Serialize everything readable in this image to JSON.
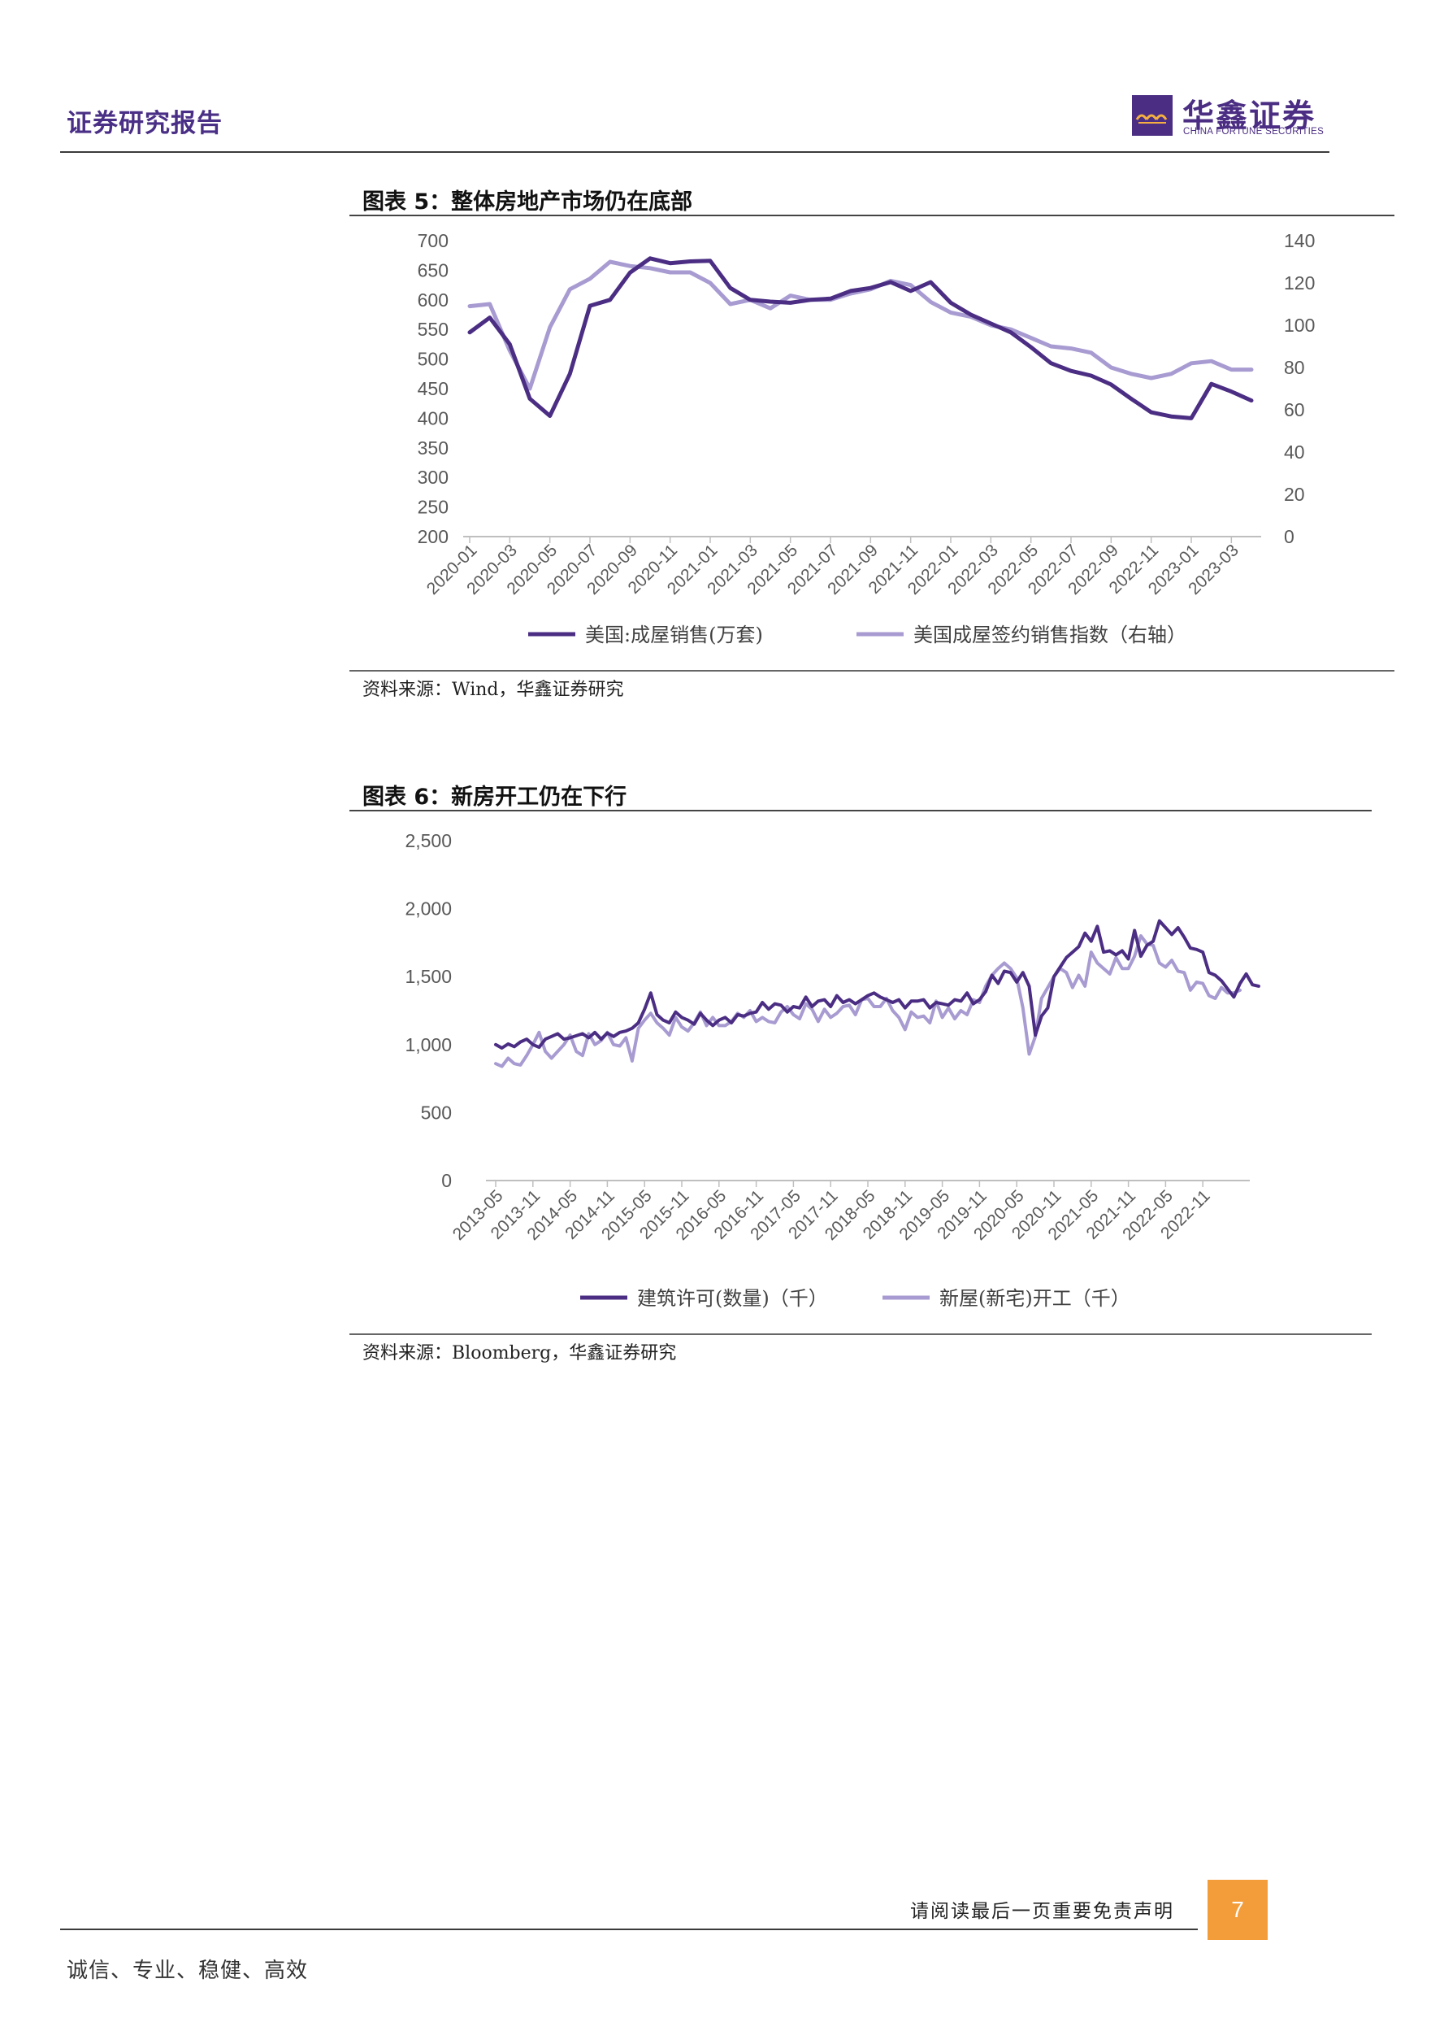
{
  "header": {
    "title": "证券研究报告",
    "logo_cn": "华鑫证券",
    "logo_en": "CHINA FORTUNE SECURITIES",
    "brand_color": "#4b2e83"
  },
  "figure5": {
    "title": "图表 5：整体房地产市场仍在底部",
    "source": "资料来源：Wind，华鑫证券研究"
  },
  "figure6": {
    "title": "图表 6：新房开工仍在下行",
    "source": "资料来源：Bloomberg，华鑫证券研究"
  },
  "footer": {
    "notice": "请阅读最后一页重要免责声明",
    "page_number": "7",
    "motto": "诚信、专业、稳健、高效",
    "page_box_color": "#f39c3a"
  },
  "chart_data": [
    {
      "type": "line",
      "x_tick_labels": [
        "2020-01",
        "2020-03",
        "2020-05",
        "2020-07",
        "2020-09",
        "2020-11",
        "2021-01",
        "2021-03",
        "2021-05",
        "2021-07",
        "2021-09",
        "2021-11",
        "2022-01",
        "2022-03",
        "2022-05",
        "2022-07",
        "2022-09",
        "2022-11",
        "2023-01",
        "2023-03"
      ],
      "y_left": {
        "min": 200,
        "max": 700,
        "ticks": [
          "700",
          "650",
          "600",
          "550",
          "500",
          "450",
          "400",
          "350",
          "300",
          "250",
          "200"
        ]
      },
      "y_right": {
        "min": 0,
        "max": 140,
        "ticks": [
          "140",
          "120",
          "100",
          "80",
          "60",
          "40",
          "20",
          "0"
        ]
      },
      "legend_position": "bottom",
      "grid": false,
      "series": [
        {
          "name": "美国:成屋销售(万套)",
          "axis": "left",
          "color": "#4b2e83",
          "x": [
            "2020-01",
            "2020-02",
            "2020-03",
            "2020-04",
            "2020-05",
            "2020-06",
            "2020-07",
            "2020-08",
            "2020-09",
            "2020-10",
            "2020-11",
            "2020-12",
            "2021-01",
            "2021-02",
            "2021-03",
            "2021-04",
            "2021-05",
            "2021-06",
            "2021-07",
            "2021-08",
            "2021-09",
            "2021-10",
            "2021-11",
            "2021-12",
            "2022-01",
            "2022-02",
            "2022-03",
            "2022-04",
            "2022-05",
            "2022-06",
            "2022-07",
            "2022-08",
            "2022-09",
            "2022-10",
            "2022-11",
            "2022-12",
            "2023-01",
            "2023-02",
            "2023-03",
            "2023-04"
          ],
          "values": [
            545,
            570,
            525,
            433,
            404,
            475,
            590,
            600,
            646,
            670,
            662,
            665,
            666,
            620,
            600,
            597,
            595,
            600,
            602,
            615,
            620,
            630,
            615,
            630,
            595,
            575,
            560,
            545,
            520,
            493,
            480,
            472,
            457,
            433,
            410,
            403,
            400,
            458,
            445,
            430
          ]
        },
        {
          "name": "美国成屋签约销售指数（右轴）",
          "axis": "right",
          "color": "#a89bd1",
          "x": [
            "2020-01",
            "2020-02",
            "2020-03",
            "2020-04",
            "2020-05",
            "2020-06",
            "2020-07",
            "2020-08",
            "2020-09",
            "2020-10",
            "2020-11",
            "2020-12",
            "2021-01",
            "2021-02",
            "2021-03",
            "2021-04",
            "2021-05",
            "2021-06",
            "2021-07",
            "2021-08",
            "2021-09",
            "2021-10",
            "2021-11",
            "2021-12",
            "2022-01",
            "2022-02",
            "2022-03",
            "2022-04",
            "2022-05",
            "2022-06",
            "2022-07",
            "2022-08",
            "2022-09",
            "2022-10",
            "2022-11",
            "2022-12",
            "2023-01",
            "2023-02",
            "2023-03",
            "2023-04"
          ],
          "values": [
            109,
            110,
            88,
            70,
            99,
            117,
            122,
            130,
            128,
            127,
            125,
            125,
            120,
            110,
            112,
            108,
            114,
            112,
            112,
            115,
            117,
            121,
            119,
            111,
            106,
            104,
            100,
            98,
            94,
            90,
            89,
            87,
            80,
            77,
            75,
            77,
            82,
            83,
            79,
            79
          ]
        }
      ]
    },
    {
      "type": "line",
      "x_tick_labels": [
        "2013-05",
        "2013-11",
        "2014-05",
        "2014-11",
        "2015-05",
        "2015-11",
        "2016-05",
        "2016-11",
        "2017-05",
        "2017-11",
        "2018-05",
        "2018-11",
        "2019-05",
        "2019-11",
        "2020-05",
        "2020-11",
        "2021-05",
        "2021-11",
        "2022-05",
        "2022-11"
      ],
      "y_axis": {
        "min": 0,
        "max": 2500,
        "ticks": [
          "2,500",
          "2,000",
          "1,500",
          "1,000",
          "500",
          "0"
        ]
      },
      "legend_position": "bottom",
      "grid": false,
      "series": [
        {
          "name": "建筑许可(数量)（千）",
          "color": "#4b2e83",
          "x_start": "2013-05",
          "frequency": "monthly",
          "values": [
            1000,
            975,
            1005,
            985,
            1020,
            1040,
            1000,
            980,
            1040,
            1060,
            1080,
            1040,
            1050,
            1065,
            1080,
            1050,
            1090,
            1040,
            1085,
            1060,
            1090,
            1100,
            1120,
            1160,
            1260,
            1380,
            1220,
            1180,
            1160,
            1240,
            1200,
            1180,
            1150,
            1230,
            1180,
            1140,
            1180,
            1200,
            1160,
            1220,
            1210,
            1230,
            1240,
            1310,
            1260,
            1300,
            1290,
            1240,
            1280,
            1270,
            1350,
            1280,
            1320,
            1330,
            1280,
            1360,
            1310,
            1330,
            1300,
            1330,
            1360,
            1380,
            1350,
            1330,
            1310,
            1330,
            1270,
            1320,
            1320,
            1330,
            1270,
            1310,
            1300,
            1290,
            1330,
            1320,
            1380,
            1300,
            1330,
            1390,
            1510,
            1450,
            1540,
            1530,
            1460,
            1530,
            1430,
            1070,
            1210,
            1270,
            1500,
            1570,
            1640,
            1680,
            1720,
            1820,
            1760,
            1870,
            1680,
            1690,
            1660,
            1690,
            1630,
            1840,
            1650,
            1730,
            1760,
            1910,
            1860,
            1810,
            1860,
            1790,
            1710,
            1700,
            1680,
            1530,
            1510,
            1470,
            1410,
            1350,
            1450,
            1520,
            1440,
            1430
          ]
        },
        {
          "name": "新屋(新宅)开工（千）",
          "color": "#a89bd1",
          "x_start": "2013-05",
          "frequency": "monthly",
          "values": [
            860,
            840,
            900,
            860,
            850,
            920,
            1000,
            1090,
            950,
            900,
            950,
            1000,
            1070,
            950,
            920,
            1080,
            1000,
            1030,
            1090,
            1000,
            990,
            1050,
            880,
            1120,
            1180,
            1230,
            1160,
            1120,
            1070,
            1200,
            1130,
            1100,
            1160,
            1240,
            1140,
            1200,
            1140,
            1140,
            1170,
            1230,
            1200,
            1250,
            1170,
            1200,
            1170,
            1160,
            1240,
            1280,
            1220,
            1190,
            1300,
            1260,
            1170,
            1260,
            1200,
            1230,
            1280,
            1290,
            1220,
            1330,
            1340,
            1280,
            1280,
            1340,
            1250,
            1200,
            1110,
            1240,
            1200,
            1210,
            1160,
            1320,
            1200,
            1270,
            1190,
            1250,
            1220,
            1330,
            1310,
            1430,
            1510,
            1560,
            1600,
            1560,
            1490,
            1270,
            930,
            1060,
            1340,
            1420,
            1500,
            1560,
            1530,
            1420,
            1510,
            1430,
            1680,
            1600,
            1560,
            1520,
            1640,
            1560,
            1560,
            1650,
            1800,
            1740,
            1730,
            1600,
            1570,
            1620,
            1540,
            1530,
            1400,
            1460,
            1450,
            1360,
            1340,
            1420,
            1380,
            1380,
            1400
          ]
        }
      ]
    }
  ]
}
